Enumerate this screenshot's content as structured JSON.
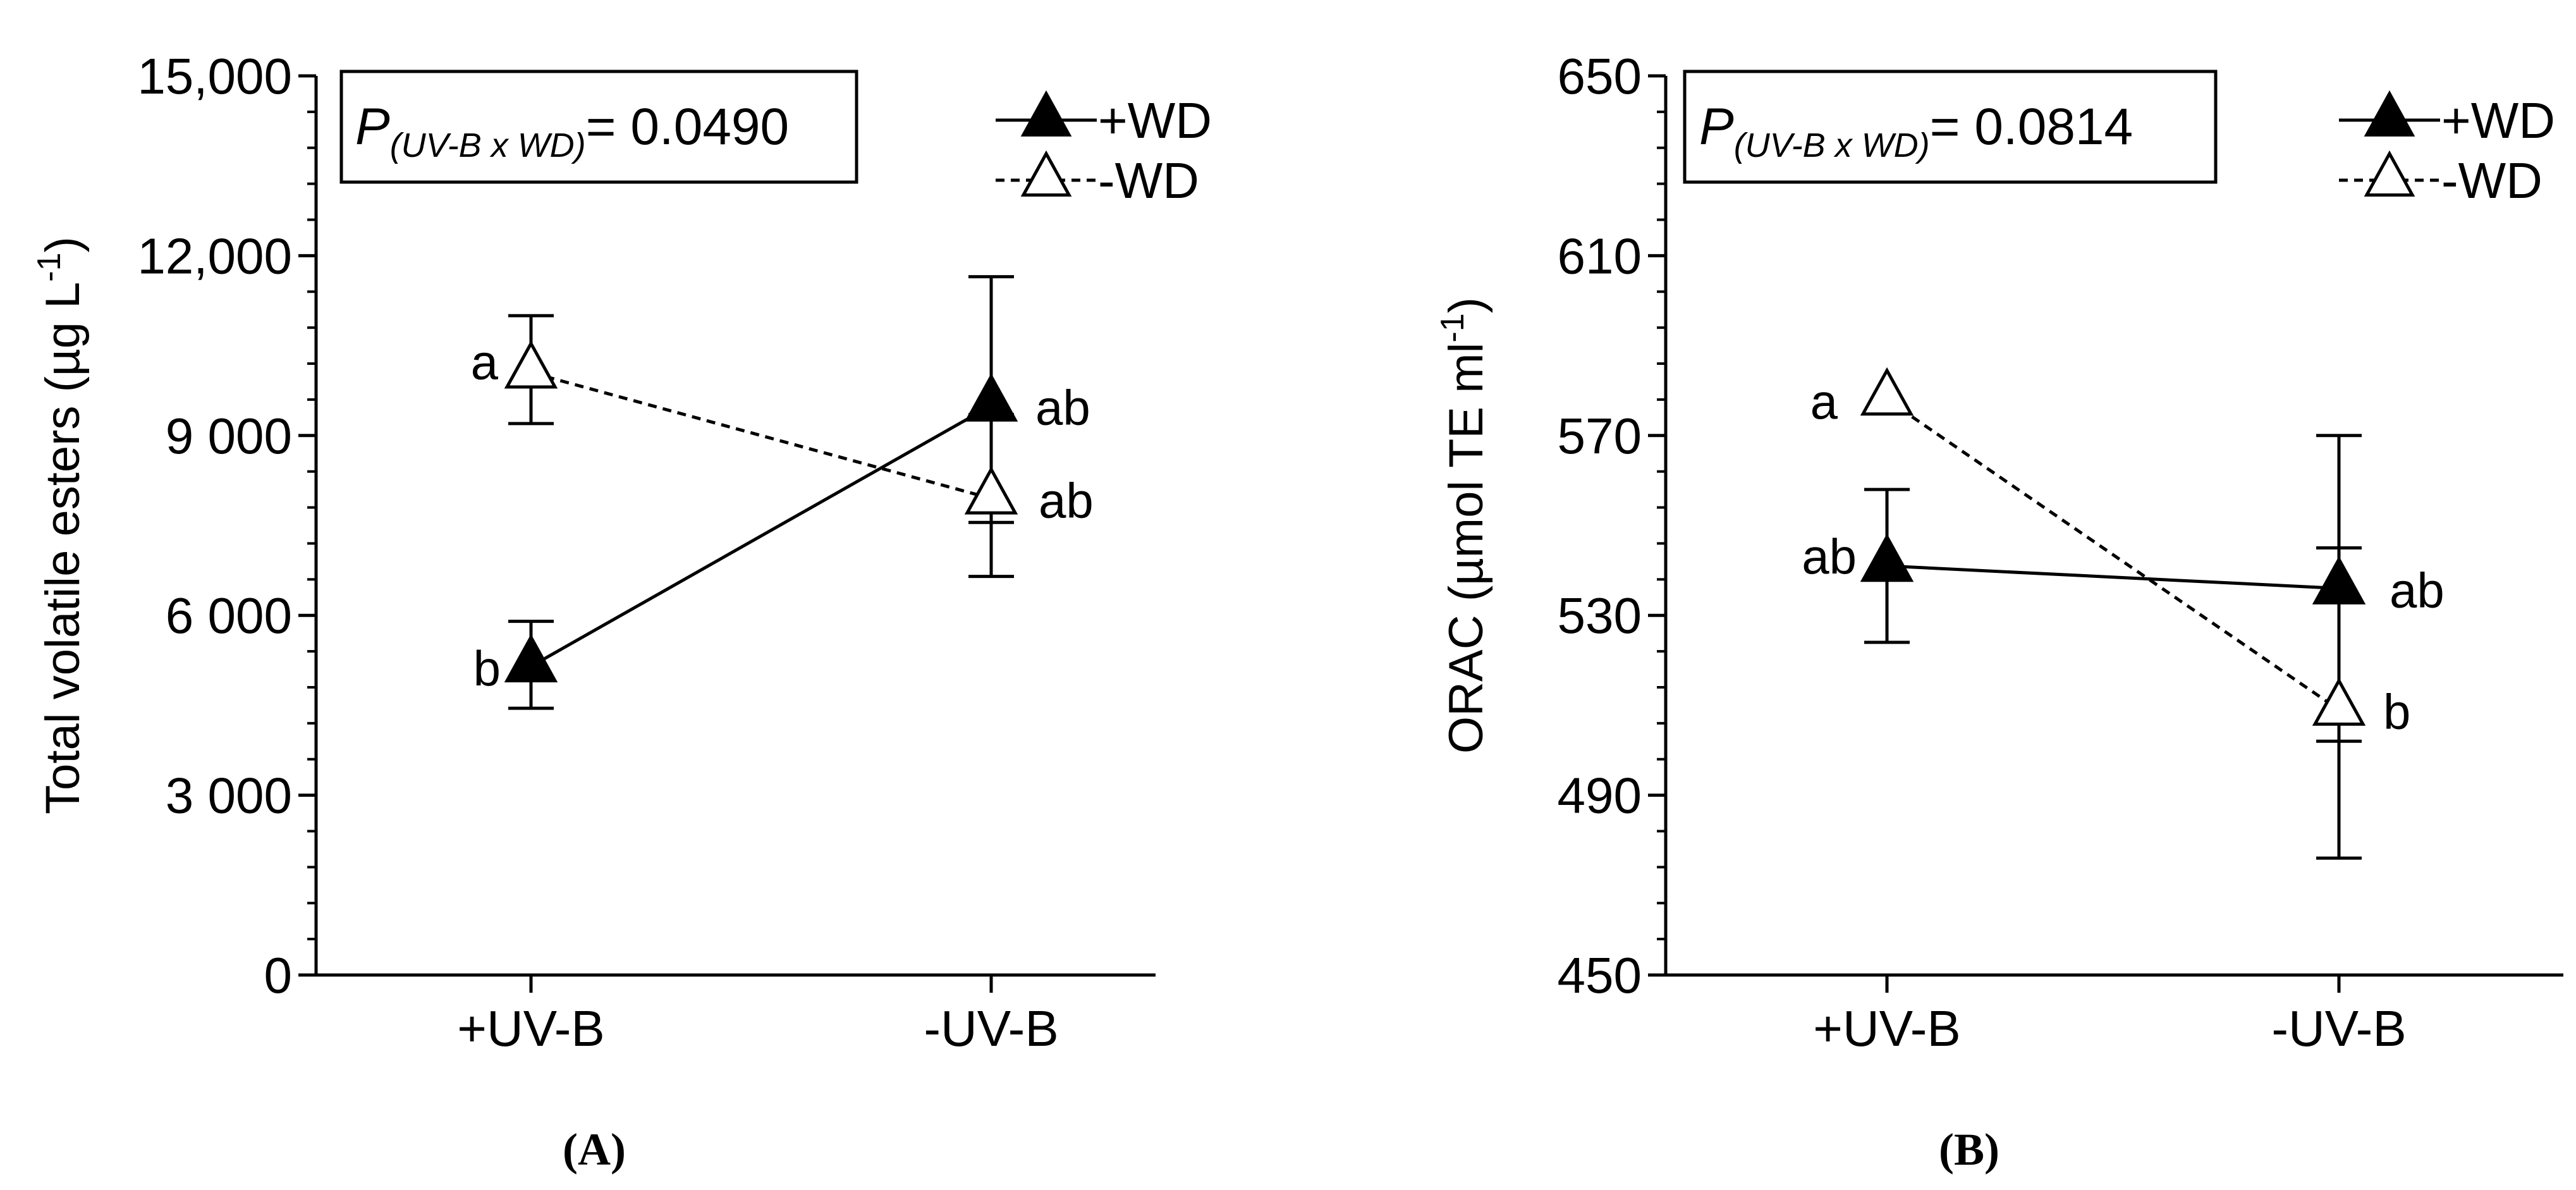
{
  "chart_data": [
    {
      "type": "line",
      "panel_label": "(A)",
      "annotation_p": {
        "label": "P",
        "subscript": "(UV-B x WD)",
        "value": "= 0.0490"
      },
      "ylabel": "Total volatile esters (µg L",
      "ylabel_sup": "-1",
      "ylabel_close": ")",
      "ylim": [
        0,
        15000
      ],
      "y_major_ticks": [
        0,
        3000,
        6000,
        9000,
        12000,
        15000
      ],
      "y_tick_labels": [
        "0",
        "3 000",
        "6 000",
        "9 000",
        "12,000",
        "15,000"
      ],
      "y_minor_step": 600,
      "categories": [
        "+UV-B",
        "-UV-B"
      ],
      "legend_position": "top-right",
      "grid": false,
      "series": [
        {
          "name": "+WD",
          "marker": "filled-triangle",
          "line": "solid",
          "values": [
            5150,
            9500
          ],
          "err_low": [
            4450,
            7550
          ],
          "err_high": [
            5900,
            11650
          ],
          "letters": [
            "b",
            "ab"
          ]
        },
        {
          "name": "-WD",
          "marker": "open-triangle",
          "line": "dashed",
          "values": [
            10050,
            7950
          ],
          "err_low": [
            9200,
            6650
          ],
          "err_high": [
            11000,
            9350
          ],
          "letters": [
            "a",
            "ab"
          ]
        }
      ]
    },
    {
      "type": "line",
      "panel_label": "(B)",
      "annotation_p": {
        "label": "P",
        "subscript": "(UV-B x WD)",
        "value": "= 0.0814"
      },
      "ylabel": "ORAC (µmol TE ml",
      "ylabel_sup": "-1",
      "ylabel_close": ")",
      "ylim": [
        450,
        650
      ],
      "y_major_ticks": [
        450,
        490,
        530,
        570,
        610,
        650
      ],
      "y_tick_labels": [
        "450",
        "490",
        "530",
        "570",
        "610",
        "650"
      ],
      "y_minor_step": 8,
      "categories": [
        "+UV-B",
        "-UV-B"
      ],
      "legend_position": "top-right",
      "grid": false,
      "series": [
        {
          "name": "+WD",
          "marker": "filled-triangle",
          "line": "solid",
          "values": [
            541,
            536
          ],
          "err_low": [
            524,
            502
          ],
          "err_high": [
            558,
            570
          ],
          "letters": [
            "ab",
            "ab"
          ]
        },
        {
          "name": "-WD",
          "marker": "open-triangle",
          "line": "dashed",
          "values": [
            578,
            509
          ],
          "err_low": [
            578,
            476
          ],
          "err_high": [
            578,
            545
          ],
          "letters": [
            "a",
            "b"
          ]
        }
      ]
    }
  ]
}
